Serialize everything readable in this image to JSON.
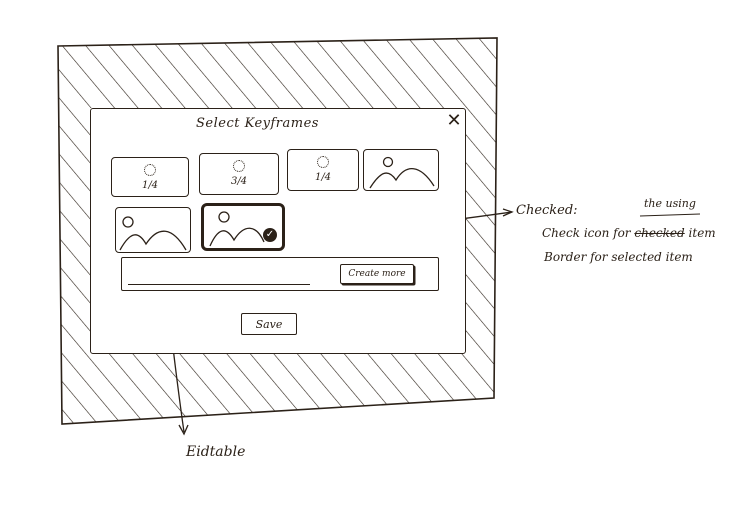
{
  "dialog": {
    "title": "Select Keyframes",
    "close_glyph": "✕",
    "thumbnails": [
      {
        "state": "loading",
        "progress": "1/4"
      },
      {
        "state": "loading",
        "progress": "3/4"
      },
      {
        "state": "loading",
        "progress": "1/4"
      },
      {
        "state": "image"
      },
      {
        "state": "image"
      },
      {
        "state": "image",
        "selected": true
      }
    ],
    "input": {
      "value": "",
      "placeholder": ""
    },
    "create_more_label": "Create more",
    "save_label": "Save"
  },
  "annotations": {
    "checked_title": "Checked:",
    "checked_line1_prefix": "Check icon for",
    "checked_line1_insert": "the using",
    "checked_line1_struck": "checked",
    "checked_line1_suffix": "item",
    "checked_line2": "Border for selected item",
    "editable": "Eidtable"
  }
}
